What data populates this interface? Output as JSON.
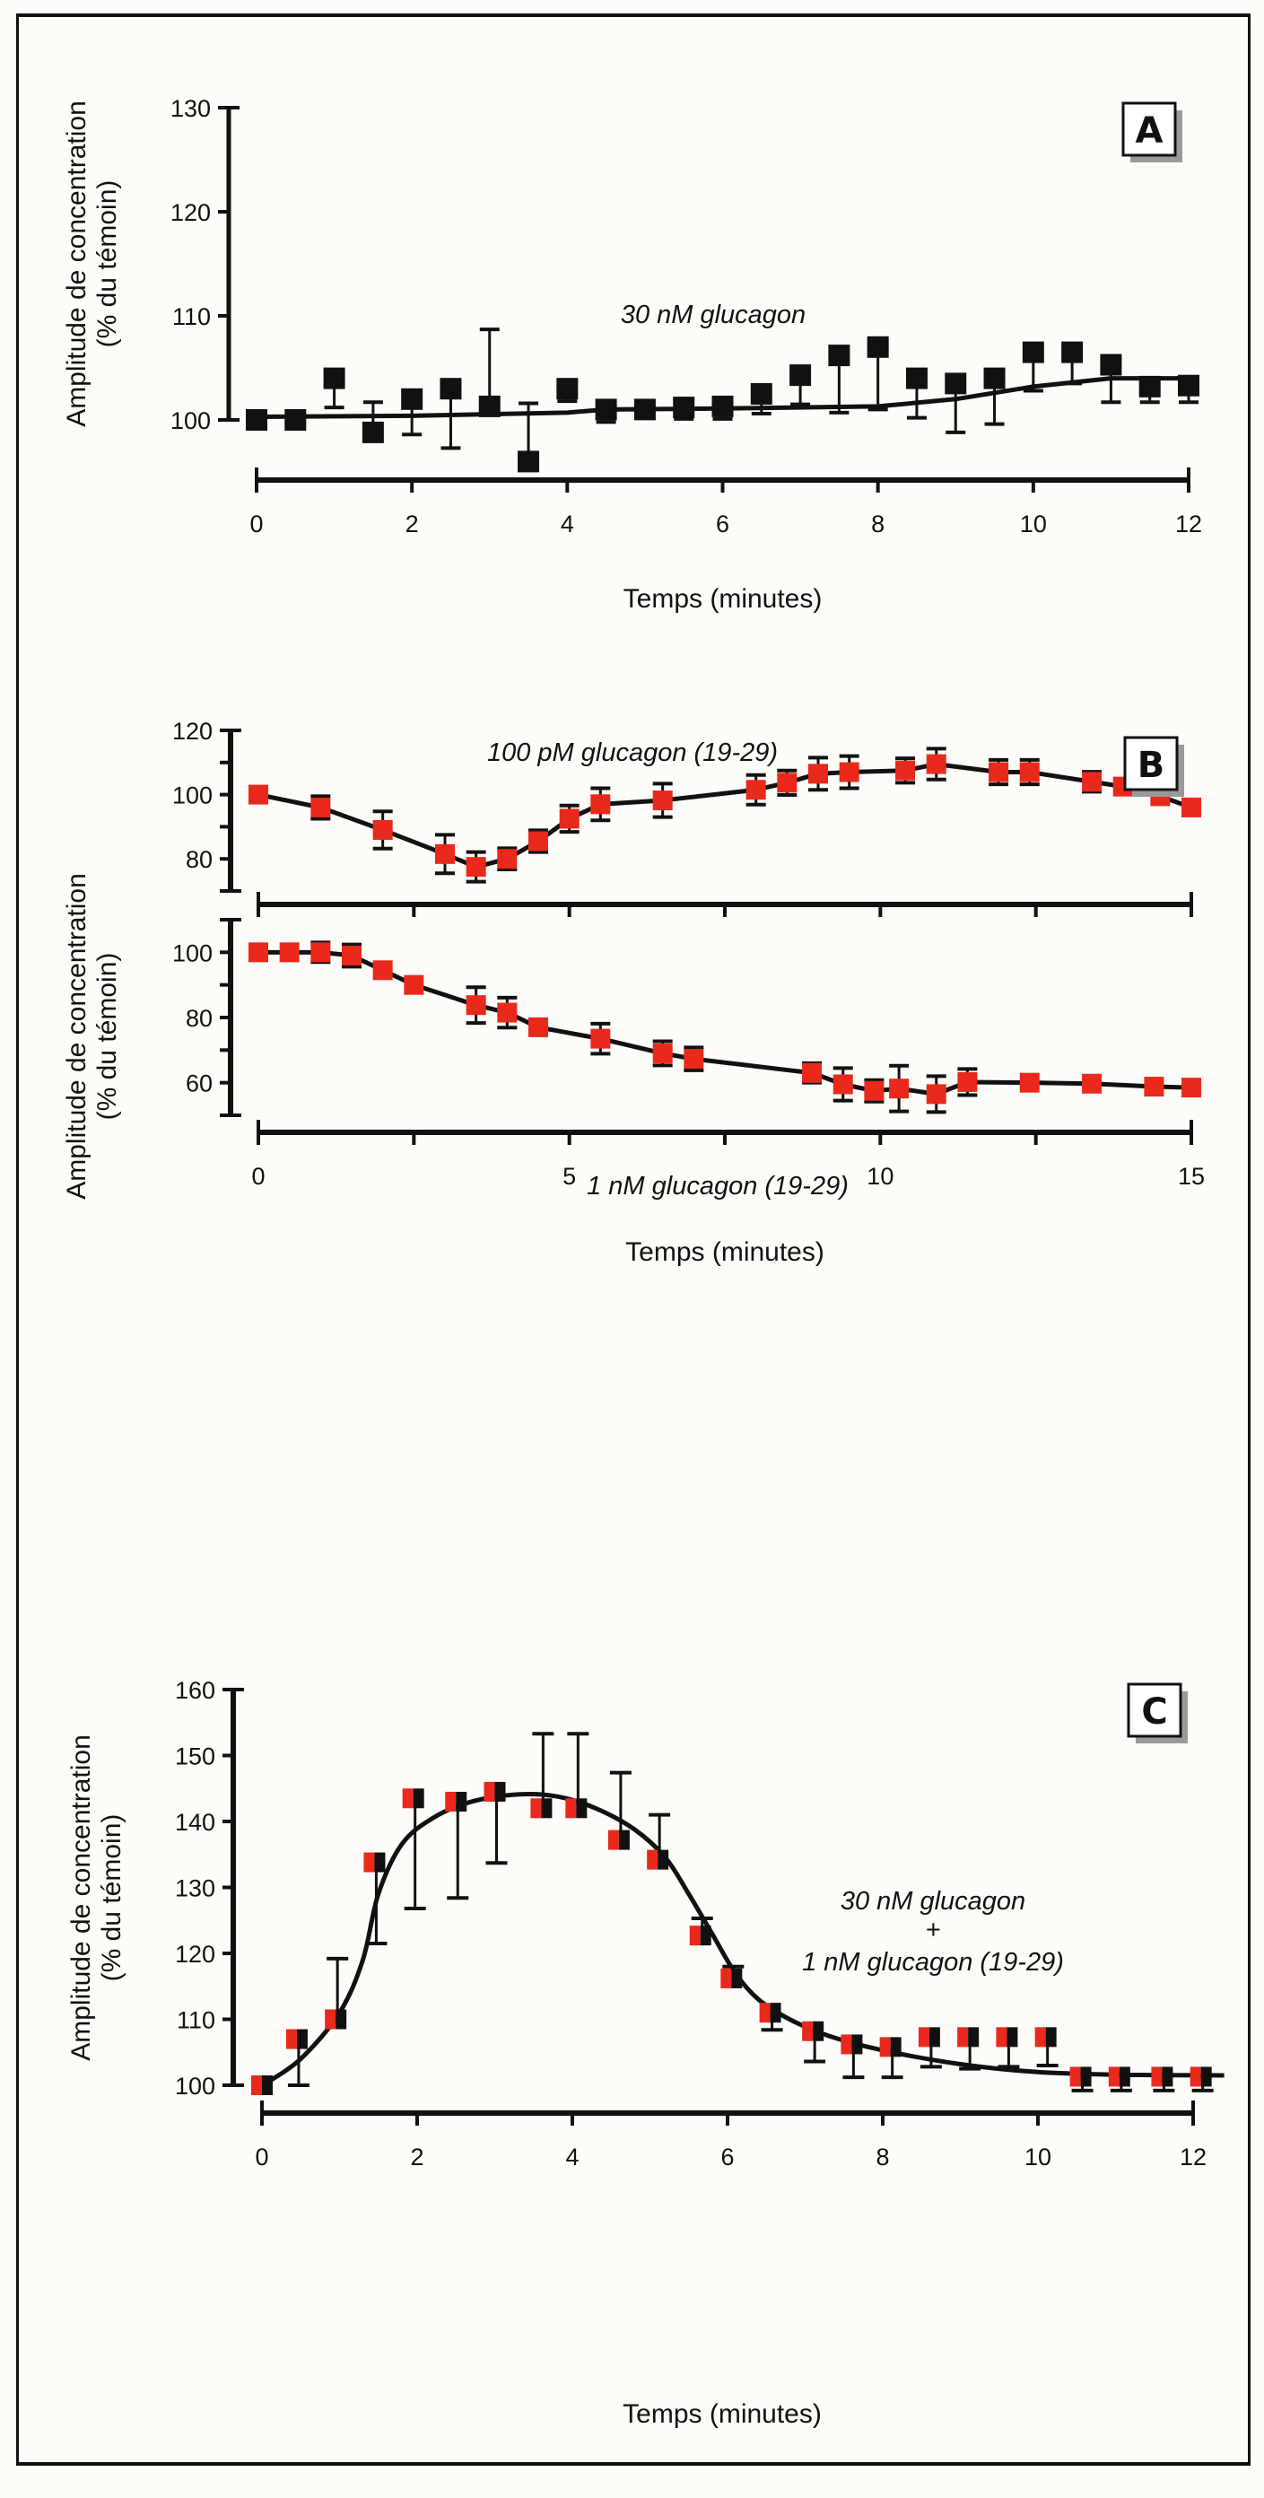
{
  "chart_data": [
    {
      "id": "A",
      "type": "scatter",
      "panel_label": "A",
      "annotation": "30 nM glucagon",
      "xlabel": "Temps (minutes)",
      "ylabel_line1": "Amplitude de concentration",
      "ylabel_line2": "(% du témoin)",
      "xlim": [
        0,
        12
      ],
      "ylim": [
        100,
        130
      ],
      "y_axis_bottom": 100,
      "x_ticks": [
        0,
        2,
        4,
        6,
        8,
        10,
        12
      ],
      "x_tick_labels": [
        "0",
        "2",
        "4",
        "6",
        "8",
        "10",
        "12"
      ],
      "y_ticks": [
        100,
        110,
        120,
        130
      ],
      "y_tick_labels": [
        "100",
        "110",
        "120",
        "130"
      ],
      "marker": "black-square",
      "points": [
        {
          "x": 0,
          "y": 100.0,
          "err_lo": null,
          "err_hi": null
        },
        {
          "x": 0.5,
          "y": 100.0,
          "err_lo": null,
          "err_hi": null
        },
        {
          "x": 1.0,
          "y": 104.0,
          "err_lo": 101.2,
          "err_hi": null
        },
        {
          "x": 1.5,
          "y": 98.8,
          "err_lo": null,
          "err_hi": 101.7
        },
        {
          "x": 2.0,
          "y": 102.0,
          "err_lo": 98.6,
          "err_hi": null
        },
        {
          "x": 2.5,
          "y": 103.0,
          "err_lo": 97.3,
          "err_hi": null
        },
        {
          "x": 3.0,
          "y": 101.3,
          "err_lo": null,
          "err_hi": 108.7
        },
        {
          "x": 3.5,
          "y": 96.0,
          "err_lo": null,
          "err_hi": 101.6
        },
        {
          "x": 4.0,
          "y": 103.0,
          "err_lo": 101.8,
          "err_hi": null
        },
        {
          "x": 4.5,
          "y": 101.0,
          "err_lo": 99.8,
          "err_hi": null
        },
        {
          "x": 5.0,
          "y": 101.0,
          "err_lo": null,
          "err_hi": null
        },
        {
          "x": 5.5,
          "y": 101.2,
          "err_lo": 100.1,
          "err_hi": null
        },
        {
          "x": 6.0,
          "y": 101.3,
          "err_lo": 100.1,
          "err_hi": null
        },
        {
          "x": 6.5,
          "y": 102.5,
          "err_lo": 100.6,
          "err_hi": null
        },
        {
          "x": 7.0,
          "y": 104.3,
          "err_lo": 101.5,
          "err_hi": null
        },
        {
          "x": 7.5,
          "y": 106.2,
          "err_lo": 100.7,
          "err_hi": null
        },
        {
          "x": 8.0,
          "y": 107.0,
          "err_lo": 101.0,
          "err_hi": null
        },
        {
          "x": 8.5,
          "y": 104.0,
          "err_lo": 100.2,
          "err_hi": null
        },
        {
          "x": 9.0,
          "y": 103.5,
          "err_lo": 98.8,
          "err_hi": null
        },
        {
          "x": 9.5,
          "y": 104.0,
          "err_lo": 99.6,
          "err_hi": null
        },
        {
          "x": 10.0,
          "y": 106.5,
          "err_lo": 102.8,
          "err_hi": null
        },
        {
          "x": 10.5,
          "y": 106.5,
          "err_lo": 103.5,
          "err_hi": null
        },
        {
          "x": 11.0,
          "y": 105.3,
          "err_lo": 101.7,
          "err_hi": null
        },
        {
          "x": 11.5,
          "y": 103.2,
          "err_lo": 101.7,
          "err_hi": null
        },
        {
          "x": 12.0,
          "y": 103.3,
          "err_lo": 101.7,
          "err_hi": null
        }
      ],
      "fit_curve": [
        [
          0,
          100.3
        ],
        [
          2,
          100.4
        ],
        [
          4,
          100.7
        ],
        [
          4.5,
          101.0
        ],
        [
          6,
          101.1
        ],
        [
          8,
          101.3
        ],
        [
          9,
          102.0
        ],
        [
          10,
          103.2
        ],
        [
          11,
          104.0
        ],
        [
          12,
          104.0
        ]
      ]
    },
    {
      "id": "B-top",
      "type": "line",
      "panel_label": "B",
      "annotation": "100 pM glucagon (19-29)",
      "xlim": [
        0,
        15
      ],
      "ylim": [
        70,
        120
      ],
      "x_ticks": [
        0,
        2.5,
        5,
        7.5,
        10,
        12.5,
        15
      ],
      "y_ticks": [
        70,
        80,
        90,
        100,
        110,
        120
      ],
      "y_tick_labels": [
        "80",
        "100",
        "120"
      ],
      "y_labeled_ticks": [
        80,
        100,
        120
      ],
      "marker": "red-square",
      "points": [
        {
          "x": 0,
          "y": 100.0,
          "err": 0
        },
        {
          "x": 1.0,
          "y": 96.0,
          "err": 3.5
        },
        {
          "x": 2.0,
          "y": 89.0,
          "err": 5.8
        },
        {
          "x": 3.0,
          "y": 81.5,
          "err": 6.0
        },
        {
          "x": 3.5,
          "y": 77.5,
          "err": 4.6
        },
        {
          "x": 4.0,
          "y": 80.0,
          "err": 3.3
        },
        {
          "x": 4.5,
          "y": 85.5,
          "err": 3.4
        },
        {
          "x": 5.0,
          "y": 92.5,
          "err": 4.1
        },
        {
          "x": 5.5,
          "y": 97.0,
          "err": 5.0
        },
        {
          "x": 6.5,
          "y": 98.2,
          "err": 5.2
        },
        {
          "x": 8.0,
          "y": 101.5,
          "err": 4.6
        },
        {
          "x": 8.5,
          "y": 103.7,
          "err": 3.8
        },
        {
          "x": 9.0,
          "y": 106.5,
          "err": 5.0
        },
        {
          "x": 9.5,
          "y": 107.0,
          "err": 5.0
        },
        {
          "x": 10.4,
          "y": 107.5,
          "err": 3.8
        },
        {
          "x": 10.9,
          "y": 109.5,
          "err": 4.8
        },
        {
          "x": 11.9,
          "y": 107.0,
          "err": 3.8
        },
        {
          "x": 12.4,
          "y": 107.0,
          "err": 3.8
        },
        {
          "x": 13.4,
          "y": 104.0,
          "err": 3.1
        },
        {
          "x": 13.9,
          "y": 102.5,
          "err": 0
        },
        {
          "x": 14.5,
          "y": 99.5,
          "err": 0
        },
        {
          "x": 15.0,
          "y": 96.0,
          "err": 0
        }
      ]
    },
    {
      "id": "B-bottom",
      "type": "line",
      "annotation": "1 nM glucagon (19-29)",
      "xlabel": "Temps (minutes)",
      "ylabel_line1": "Amplitude de concentration",
      "ylabel_line2": "(% du témoin)",
      "xlim": [
        0,
        15
      ],
      "ylim": [
        50,
        110
      ],
      "x_ticks": [
        0,
        2.5,
        5,
        7.5,
        10,
        12.5,
        15
      ],
      "x_tick_labels": [
        "0",
        "5",
        "10",
        "15"
      ],
      "x_labeled_ticks": [
        0,
        5,
        10,
        15
      ],
      "y_ticks": [
        50,
        60,
        70,
        80,
        90,
        100,
        110
      ],
      "y_tick_labels": [
        "60",
        "80",
        "100"
      ],
      "y_labeled_ticks": [
        60,
        80,
        100
      ],
      "marker": "red-square",
      "points": [
        {
          "x": 0,
          "y": 100.0,
          "err": 0
        },
        {
          "x": 0.5,
          "y": 100.0,
          "err": 0
        },
        {
          "x": 1.0,
          "y": 100.0,
          "err": 3.0
        },
        {
          "x": 1.5,
          "y": 99.0,
          "err": 3.4
        },
        {
          "x": 2.0,
          "y": 94.5,
          "err": 0
        },
        {
          "x": 2.5,
          "y": 90.0,
          "err": 0
        },
        {
          "x": 3.5,
          "y": 83.8,
          "err": 5.5
        },
        {
          "x": 4.0,
          "y": 81.5,
          "err": 4.6
        },
        {
          "x": 4.5,
          "y": 77.0,
          "err": 0
        },
        {
          "x": 5.5,
          "y": 73.5,
          "err": 4.6
        },
        {
          "x": 6.5,
          "y": 69.0,
          "err": 3.7
        },
        {
          "x": 7.0,
          "y": 67.3,
          "err": 3.5
        },
        {
          "x": 8.9,
          "y": 63.0,
          "err": 3.0
        },
        {
          "x": 9.4,
          "y": 59.5,
          "err": 5.0
        },
        {
          "x": 9.9,
          "y": 57.5,
          "err": 3.3
        },
        {
          "x": 10.3,
          "y": 58.2,
          "err": 7.0
        },
        {
          "x": 10.9,
          "y": 56.5,
          "err": 5.5
        },
        {
          "x": 11.4,
          "y": 60.2,
          "err": 4.0
        },
        {
          "x": 12.4,
          "y": 60.0,
          "err": 0
        },
        {
          "x": 13.4,
          "y": 59.7,
          "err": 0
        },
        {
          "x": 14.4,
          "y": 58.8,
          "err": 0
        },
        {
          "x": 15.0,
          "y": 58.5,
          "err": 0
        }
      ]
    },
    {
      "id": "C",
      "type": "scatter",
      "panel_label": "C",
      "annotation_line1": "30 nM glucagon",
      "annotation_line2": "+",
      "annotation_line3": "1 nM glucagon (19-29)",
      "xlabel": "Temps (minutes)",
      "ylabel_line1": "Amplitude de concentration",
      "ylabel_line2": "(% du témoin)",
      "xlim": [
        0,
        12
      ],
      "ylim": [
        100,
        160
      ],
      "x_ticks": [
        0,
        2,
        4,
        6,
        8,
        10,
        12
      ],
      "x_tick_labels": [
        "0",
        "2",
        "4",
        "6",
        "8",
        "10",
        "12"
      ],
      "y_ticks": [
        100,
        110,
        120,
        130,
        140,
        150,
        160
      ],
      "y_tick_labels": [
        "100",
        "110",
        "120",
        "130",
        "140",
        "150",
        "160"
      ],
      "marker": "half-red-half-black-square",
      "points": [
        {
          "x": 0,
          "y": 100.0,
          "err_lo": null,
          "err_hi": null
        },
        {
          "x": 0.45,
          "y": 107.0,
          "err_lo": 100.0,
          "err_hi": null
        },
        {
          "x": 0.95,
          "y": 110.0,
          "err_lo": null,
          "err_hi": 119.2
        },
        {
          "x": 1.45,
          "y": 133.8,
          "err_lo": 121.5,
          "err_hi": null
        },
        {
          "x": 1.95,
          "y": 143.5,
          "err_lo": 126.8,
          "err_hi": null
        },
        {
          "x": 2.5,
          "y": 143.0,
          "err_lo": 128.4,
          "err_hi": null
        },
        {
          "x": 3.0,
          "y": 144.5,
          "err_lo": 133.7,
          "err_hi": null
        },
        {
          "x": 3.6,
          "y": 142.0,
          "err_lo": null,
          "err_hi": 153.3
        },
        {
          "x": 4.05,
          "y": 142.0,
          "err_lo": null,
          "err_hi": 153.3
        },
        {
          "x": 4.6,
          "y": 137.2,
          "err_lo": null,
          "err_hi": 147.4
        },
        {
          "x": 5.1,
          "y": 134.2,
          "err_lo": null,
          "err_hi": 141.0
        },
        {
          "x": 5.65,
          "y": 122.7,
          "err_lo": null,
          "err_hi": 125.3
        },
        {
          "x": 6.05,
          "y": 116.2,
          "err_lo": null,
          "err_hi": 118.0
        },
        {
          "x": 6.55,
          "y": 111.0,
          "err_lo": 108.4,
          "err_hi": null
        },
        {
          "x": 7.1,
          "y": 108.2,
          "err_lo": 103.6,
          "err_hi": null
        },
        {
          "x": 7.6,
          "y": 106.2,
          "err_lo": 101.2,
          "err_hi": null
        },
        {
          "x": 8.1,
          "y": 105.8,
          "err_lo": 101.2,
          "err_hi": null
        },
        {
          "x": 8.6,
          "y": 107.3,
          "err_lo": 102.8,
          "err_hi": null
        },
        {
          "x": 9.1,
          "y": 107.3,
          "err_lo": 102.5,
          "err_hi": null
        },
        {
          "x": 9.6,
          "y": 107.3,
          "err_lo": 102.8,
          "err_hi": null
        },
        {
          "x": 10.1,
          "y": 107.3,
          "err_lo": 103.0,
          "err_hi": null
        },
        {
          "x": 10.55,
          "y": 101.3,
          "err_lo": 99.2,
          "err_hi": null
        },
        {
          "x": 11.05,
          "y": 101.3,
          "err_lo": 99.2,
          "err_hi": null
        },
        {
          "x": 11.6,
          "y": 101.3,
          "err_lo": 99.2,
          "err_hi": null
        },
        {
          "x": 12.1,
          "y": 101.3,
          "err_lo": 99.2,
          "err_hi": null
        }
      ],
      "fit_curve": [
        [
          0.05,
          100.3
        ],
        [
          0.5,
          104
        ],
        [
          1.0,
          111
        ],
        [
          1.3,
          119
        ],
        [
          1.5,
          129
        ],
        [
          1.8,
          136.5
        ],
        [
          2.2,
          140.5
        ],
        [
          2.7,
          143
        ],
        [
          3.3,
          144.1
        ],
        [
          3.8,
          143.8
        ],
        [
          4.3,
          142
        ],
        [
          4.8,
          138.8
        ],
        [
          5.2,
          134.5
        ],
        [
          5.5,
          129
        ],
        [
          5.8,
          123
        ],
        [
          6.1,
          117
        ],
        [
          6.4,
          113
        ],
        [
          6.8,
          110
        ],
        [
          7.3,
          107.5
        ],
        [
          8.0,
          105.3
        ],
        [
          9.0,
          103.2
        ],
        [
          10.0,
          102.0
        ],
        [
          11.0,
          101.6
        ],
        [
          12.4,
          101.5
        ]
      ]
    }
  ],
  "colors": {
    "marker_red": "#e8291c",
    "ink": "#111111",
    "background": "#fdfcf8",
    "badge_shadow": "#9a9a9a"
  }
}
